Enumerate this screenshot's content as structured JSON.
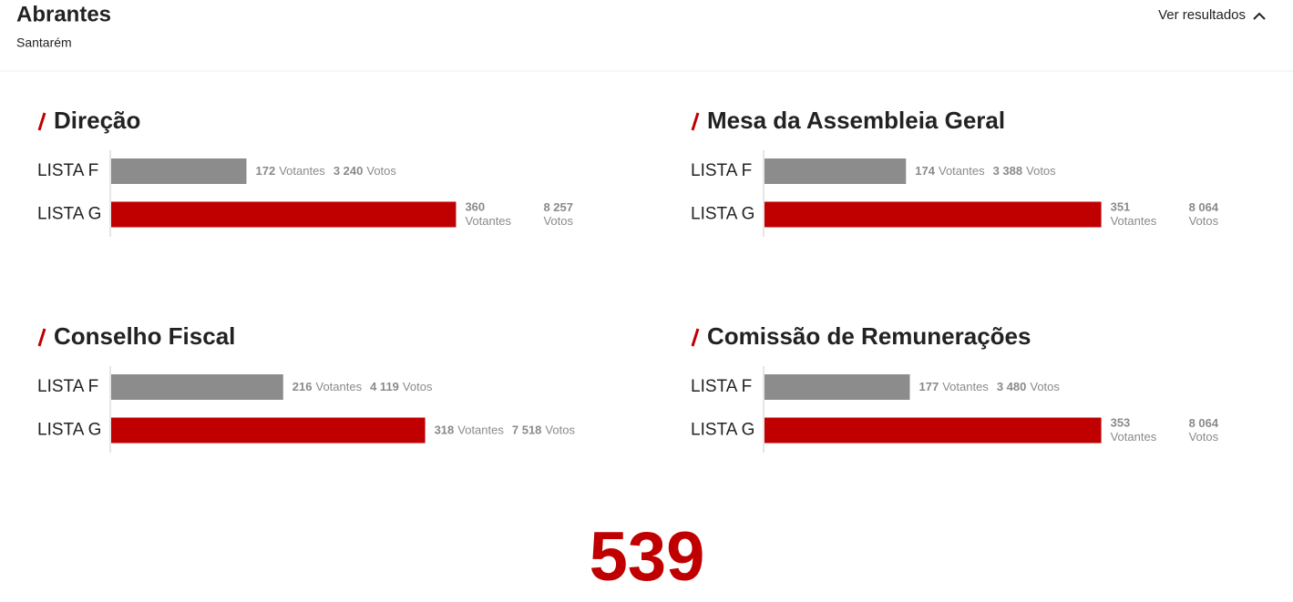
{
  "header": {
    "title": "Abrantes",
    "subtitle": "Santarém",
    "toggle": "Ver resultados"
  },
  "chart_data": [
    {
      "type": "bar",
      "orientation": "horizontal",
      "title": "Direção",
      "categories": [
        "LISTA F",
        "LISTA G"
      ],
      "colors": [
        "#8c8c8c",
        "#c00000"
      ],
      "xlim": [
        0,
        12000
      ],
      "series": [
        {
          "name": "Votos",
          "values": [
            3240,
            8257
          ],
          "value_labels": [
            "3 240",
            "8 257"
          ]
        },
        {
          "name": "Votantes",
          "values": [
            172,
            360
          ]
        }
      ]
    },
    {
      "type": "bar",
      "orientation": "horizontal",
      "title": "Mesa da Assembleia Geral",
      "categories": [
        "LISTA F",
        "LISTA G"
      ],
      "colors": [
        "#8c8c8c",
        "#c00000"
      ],
      "xlim": [
        0,
        12000
      ],
      "series": [
        {
          "name": "Votos",
          "values": [
            3388,
            8064
          ],
          "value_labels": [
            "3 388",
            "8 064"
          ]
        },
        {
          "name": "Votantes",
          "values": [
            174,
            351
          ]
        }
      ]
    },
    {
      "type": "bar",
      "orientation": "horizontal",
      "title": "Conselho Fiscal",
      "categories": [
        "LISTA F",
        "LISTA G"
      ],
      "colors": [
        "#8c8c8c",
        "#c00000"
      ],
      "xlim": [
        0,
        12000
      ],
      "series": [
        {
          "name": "Votos",
          "values": [
            4119,
            7518
          ],
          "value_labels": [
            "4 119",
            "7 518"
          ]
        },
        {
          "name": "Votantes",
          "values": [
            216,
            318
          ]
        }
      ]
    },
    {
      "type": "bar",
      "orientation": "horizontal",
      "title": "Comissão de Remunerações",
      "categories": [
        "LISTA F",
        "LISTA G"
      ],
      "colors": [
        "#8c8c8c",
        "#c00000"
      ],
      "xlim": [
        0,
        12000
      ],
      "series": [
        {
          "name": "Votos",
          "values": [
            3480,
            8064
          ],
          "value_labels": [
            "3 480",
            "8 064"
          ]
        },
        {
          "name": "Votantes",
          "values": [
            177,
            353
          ]
        }
      ]
    }
  ],
  "total": 539
}
